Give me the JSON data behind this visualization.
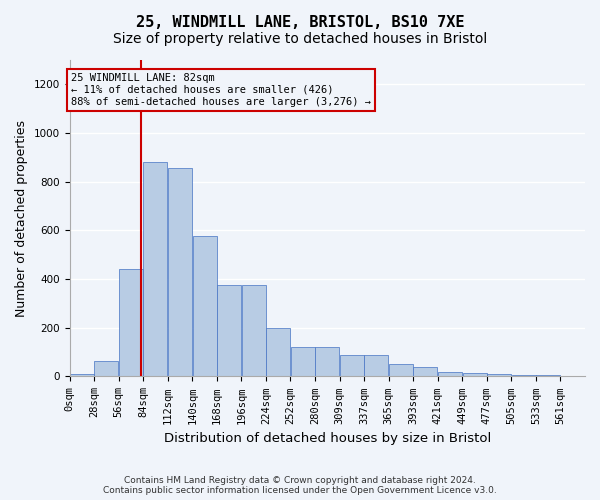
{
  "title_line1": "25, WINDMILL LANE, BRISTOL, BS10 7XE",
  "title_line2": "Size of property relative to detached houses in Bristol",
  "xlabel": "Distribution of detached houses by size in Bristol",
  "ylabel": "Number of detached properties",
  "annotation_title": "25 WINDMILL LANE: 82sqm",
  "annotation_line2": "← 11% of detached houses are smaller (426)",
  "annotation_line3": "88% of semi-detached houses are larger (3,276) →",
  "footer_line1": "Contains HM Land Registry data © Crown copyright and database right 2024.",
  "footer_line2": "Contains public sector information licensed under the Open Government Licence v3.0.",
  "bin_labels": [
    "0sqm",
    "28sqm",
    "56sqm",
    "84sqm",
    "112sqm",
    "140sqm",
    "168sqm",
    "196sqm",
    "224sqm",
    "252sqm",
    "280sqm",
    "309sqm",
    "337sqm",
    "365sqm",
    "393sqm",
    "421sqm",
    "449sqm",
    "477sqm",
    "505sqm",
    "533sqm",
    "561sqm"
  ],
  "bar_heights": [
    10,
    65,
    440,
    880,
    858,
    578,
    375,
    375,
    200,
    120,
    120,
    90,
    90,
    50,
    40,
    20,
    15,
    10,
    5,
    5,
    2
  ],
  "bar_color": "#b8cce4",
  "bar_edge_color": "#4472c4",
  "property_line_x": 82,
  "bin_width": 28,
  "ylim": [
    0,
    1300
  ],
  "yticks": [
    0,
    200,
    400,
    600,
    800,
    1000,
    1200
  ],
  "vline_color": "#cc0000",
  "background_color": "#f0f4fa",
  "grid_color": "#ffffff",
  "title_fontsize": 11,
  "subtitle_fontsize": 10,
  "axis_fontsize": 9,
  "tick_fontsize": 7.5
}
